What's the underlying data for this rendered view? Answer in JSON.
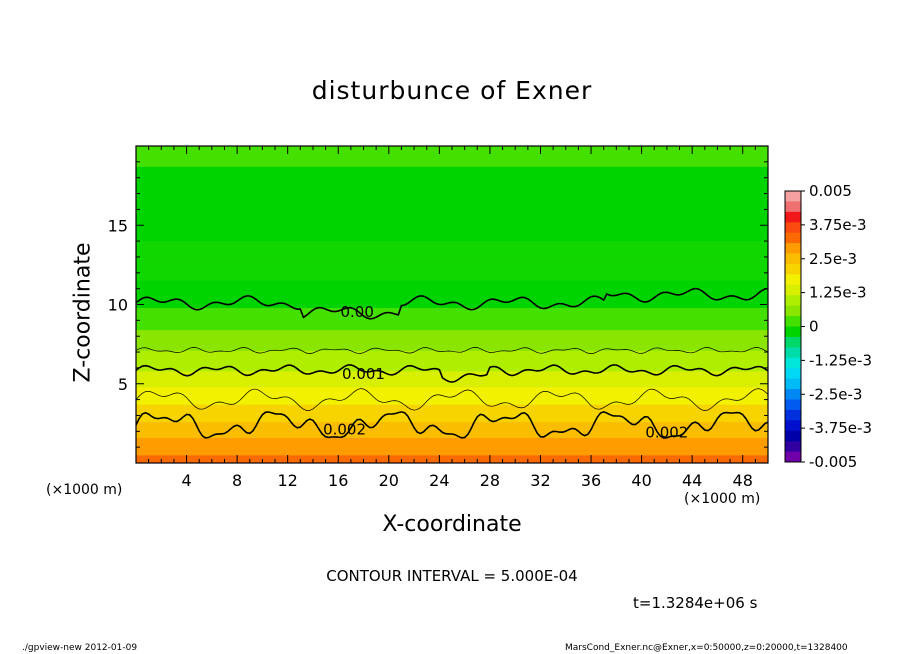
{
  "chart_data": {
    "type": "heatmap",
    "title": "disturbunce of Exner",
    "xlabel": "X-coordinate",
    "ylabel": "Z-coordinate",
    "x_unit_label": "(×1000 m)",
    "x_ticks": [
      4,
      8,
      12,
      16,
      20,
      24,
      28,
      32,
      36,
      40,
      44,
      48
    ],
    "y_ticks": [
      5,
      10,
      15
    ],
    "xlim": [
      0,
      50
    ],
    "ylim": [
      0,
      20
    ],
    "colorbar": {
      "labels": [
        "0.005",
        "3.75e-3",
        "2.5e-3",
        "1.25e-3",
        "0",
        "-1.25e-3",
        "-2.5e-3",
        "-3.75e-3",
        "-0.005"
      ],
      "range": [
        -0.005,
        0.005
      ]
    },
    "contour_labels": [
      "0.00",
      "0.001",
      "0.002",
      "0.002"
    ],
    "contour_levels": [
      0.0,
      0.001,
      0.002
    ],
    "contour_interval_text": "CONTOUR INTERVAL = 5.000E-04",
    "time_text": "t=1.3284e+06 s"
  },
  "footer": {
    "left": "./gpview-new   2012-01-09",
    "right": "MarsCond_Exner.nc@Exner,x=0:50000,z=0:20000,t=1328400"
  }
}
